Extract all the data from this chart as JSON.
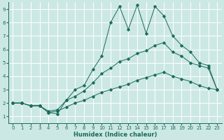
{
  "xlabel": "Humidex (Indice chaleur)",
  "bg_color": "#cce8e4",
  "grid_color": "#b0d8d4",
  "line_color": "#1a6b5a",
  "xlim": [
    -0.5,
    23.5
  ],
  "ylim": [
    0.5,
    9.5
  ],
  "xticks": [
    0,
    1,
    2,
    3,
    4,
    5,
    6,
    7,
    8,
    9,
    10,
    11,
    12,
    13,
    14,
    15,
    16,
    17,
    18,
    19,
    20,
    21,
    22,
    23
  ],
  "yticks": [
    1,
    2,
    3,
    4,
    5,
    6,
    7,
    8,
    9
  ],
  "line1_y": [
    2.0,
    2.0,
    1.8,
    1.8,
    1.3,
    1.2,
    2.2,
    3.0,
    3.3,
    4.5,
    5.5,
    8.0,
    9.2,
    7.5,
    9.3,
    7.2,
    9.2,
    8.5,
    7.0,
    6.3,
    5.8,
    5.0,
    4.8,
    3.0
  ],
  "line2_y": [
    2.0,
    2.0,
    1.8,
    1.8,
    1.4,
    1.5,
    2.2,
    2.5,
    2.9,
    3.5,
    4.2,
    4.6,
    5.1,
    5.3,
    5.7,
    5.9,
    6.3,
    6.5,
    5.8,
    5.5,
    5.0,
    4.8,
    4.6,
    3.0
  ],
  "line3_y": [
    2.0,
    2.0,
    1.8,
    1.8,
    1.3,
    1.4,
    1.7,
    2.0,
    2.2,
    2.5,
    2.8,
    3.0,
    3.2,
    3.4,
    3.7,
    3.9,
    4.1,
    4.3,
    4.0,
    3.8,
    3.6,
    3.3,
    3.1,
    3.0
  ],
  "marker": "D",
  "markersize": 1.8,
  "linewidth": 0.7,
  "tick_fontsize": 5.0,
  "xlabel_fontsize": 6.0
}
